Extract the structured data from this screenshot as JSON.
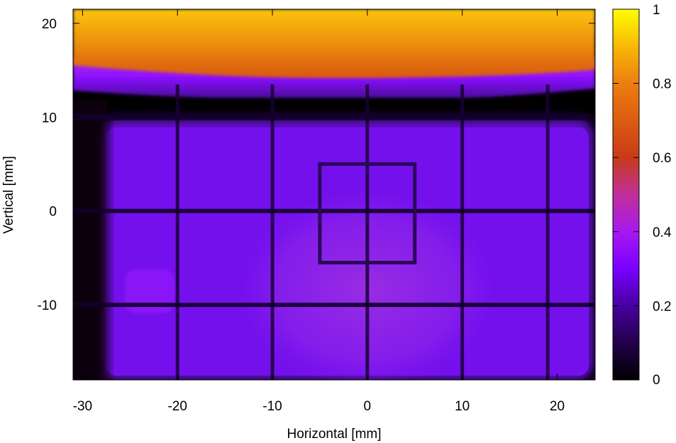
{
  "chart_data": {
    "type": "heatmap",
    "title": "",
    "xlabel": "Horizontal [mm]",
    "ylabel": "Vertical [mm]",
    "xlim": [
      -31,
      24
    ],
    "ylim": [
      -18,
      21.5
    ],
    "xticks": [
      -30,
      -20,
      -10,
      0,
      10,
      20
    ],
    "yticks": [
      -10,
      0,
      10,
      20
    ],
    "colorbar": {
      "range": [
        0,
        1
      ],
      "ticks": [
        0,
        0.2,
        0.4,
        0.6,
        0.8,
        1
      ],
      "palette": [
        "#000000",
        "#2a0055",
        "#5a00b0",
        "#8a10ff",
        "#b030e0",
        "#c03a40",
        "#d84e10",
        "#f08810",
        "#ffd800",
        "#ffff00"
      ]
    },
    "colors": {
      "background": "#000000",
      "cell": "#7410ec",
      "cell_dim": "#5a0aca",
      "center_glow": "#9a2ee0",
      "upper_band": "#e06a10",
      "top_band": "#f7a408"
    },
    "features": {
      "bright_band_above_mm": 15,
      "intensity_top_band": 0.85,
      "intensity_upper_band": 0.7,
      "intensity_purple_band": 0.3,
      "intensity_cells": 0.22,
      "grid_wires_x_mm": [
        -20,
        -10,
        0,
        10,
        19
      ],
      "grid_wires_y_mm": [
        -10,
        0,
        10
      ],
      "square_frame_mm": {
        "x": [
          -5,
          5
        ],
        "y": [
          -5.5,
          5
        ]
      },
      "central_spot_mm": {
        "x": 0,
        "y": -8,
        "r": 10
      }
    }
  }
}
